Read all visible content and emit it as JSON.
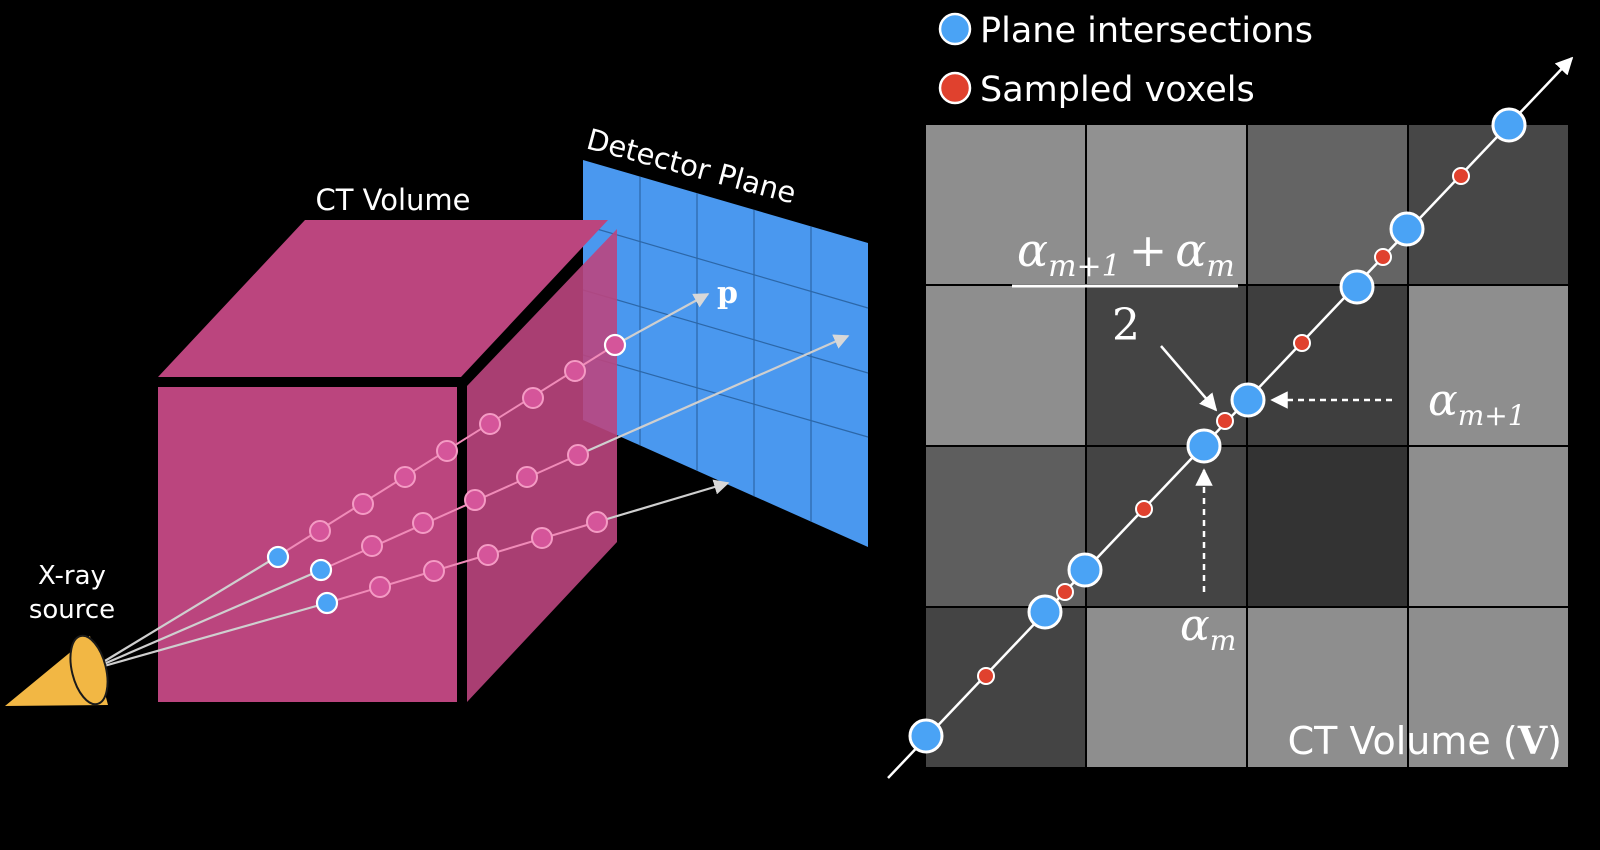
{
  "left_panel": {
    "volume_label": "CT Volume",
    "detector_label": "Detector Plane",
    "pixel_label": "p",
    "source_label_line1": "X-ray",
    "source_label_line2": "source"
  },
  "legend": {
    "items": [
      {
        "label": "Plane intersections",
        "color": "#4aa3f5"
      },
      {
        "label": "Sampled voxels",
        "color": "#e0412e"
      }
    ]
  },
  "right_panel": {
    "volume_label": "CT Volume (",
    "volume_symbol": "V",
    "volume_label_close": ")",
    "alpha": "α",
    "sub_m1": "m+1",
    "sub_m": "m",
    "plus": "+",
    "denominator": "2",
    "grid_shades": [
      [
        "#8e8e8e",
        "#919191",
        "#646464",
        "#474747"
      ],
      [
        "#8e8e8e",
        "#444444",
        "#3e3e3e",
        "#8e8e8e"
      ],
      [
        "#5e5e5e",
        "#444444",
        "#333333",
        "#8e8e8e"
      ],
      [
        "#444444",
        "#8e8e8e",
        "#8e8e8e",
        "#8e8e8e"
      ]
    ]
  },
  "colors": {
    "volume_pink": "#bb457e",
    "detector_blue": "#4a98ef",
    "source_orange": "#f2b744",
    "ray_gray": "#cfcfcf"
  }
}
